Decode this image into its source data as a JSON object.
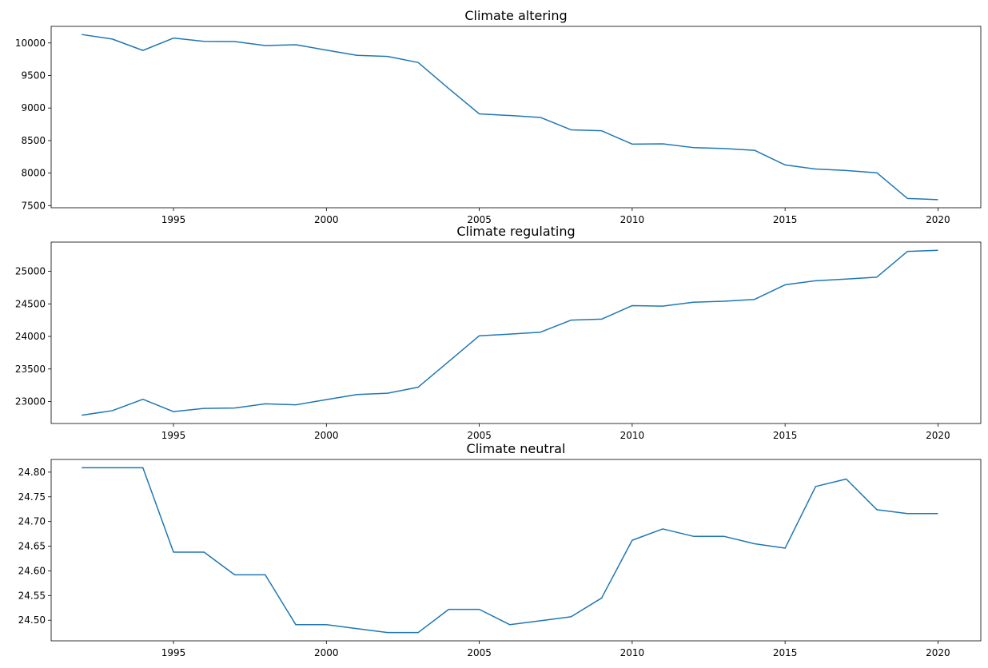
{
  "figure": {
    "background": "#ffffff",
    "line_color": "#1f77b4"
  },
  "chart_data": [
    {
      "type": "line",
      "title": "Climate altering",
      "xlabel": "",
      "ylabel": "",
      "x": [
        1992,
        1993,
        1994,
        1995,
        1996,
        1997,
        1998,
        1999,
        2000,
        2001,
        2002,
        2003,
        2004,
        2005,
        2006,
        2007,
        2008,
        2009,
        2010,
        2011,
        2012,
        2013,
        2014,
        2015,
        2016,
        2017,
        2018,
        2019,
        2020
      ],
      "series": [
        {
          "values": [
            10130,
            10060,
            9885,
            10075,
            10025,
            10022,
            9960,
            9973,
            9890,
            9810,
            9793,
            9700,
            9300,
            8910,
            8885,
            8855,
            8665,
            8650,
            8445,
            8450,
            8392,
            8378,
            8350,
            8125,
            8062,
            8040,
            8005,
            7610,
            7592
          ]
        }
      ],
      "xlim": [
        1991.0,
        2021.4
      ],
      "ylim": [
        7467,
        10255
      ],
      "xticks": [
        1995,
        2000,
        2005,
        2010,
        2015,
        2020
      ],
      "xtick_labels": [
        "1995",
        "2000",
        "2005",
        "2010",
        "2015",
        "2020"
      ],
      "yticks": [
        7500,
        8000,
        8500,
        9000,
        9500,
        10000
      ],
      "ytick_labels": [
        "7500",
        "8000",
        "8500",
        "9000",
        "9500",
        "10000"
      ],
      "grid": false,
      "legend": "none"
    },
    {
      "type": "line",
      "title": "Climate regulating",
      "xlabel": "",
      "ylabel": "",
      "x": [
        1992,
        1993,
        1994,
        1995,
        1996,
        1997,
        1998,
        1999,
        2000,
        2001,
        2002,
        2003,
        2004,
        2005,
        2006,
        2007,
        2008,
        2009,
        2010,
        2011,
        2012,
        2013,
        2014,
        2015,
        2016,
        2017,
        2018,
        2019,
        2020
      ],
      "series": [
        {
          "values": [
            22790,
            22860,
            23035,
            22845,
            22895,
            22900,
            22965,
            22950,
            23030,
            23108,
            23128,
            23220,
            23615,
            24010,
            24035,
            24065,
            24250,
            24265,
            24473,
            24465,
            24525,
            24540,
            24568,
            24793,
            24855,
            24880,
            24910,
            25305,
            25322
          ]
        }
      ],
      "xlim": [
        1991.0,
        2021.4
      ],
      "ylim": [
        22663,
        25448
      ],
      "xticks": [
        1995,
        2000,
        2005,
        2010,
        2015,
        2020
      ],
      "xtick_labels": [
        "1995",
        "2000",
        "2005",
        "2010",
        "2015",
        "2020"
      ],
      "yticks": [
        23000,
        23500,
        24000,
        24500,
        25000
      ],
      "ytick_labels": [
        "23000",
        "23500",
        "24000",
        "24500",
        "25000"
      ],
      "grid": false,
      "legend": "none"
    },
    {
      "type": "line",
      "title": "Climate neutral",
      "xlabel": "",
      "ylabel": "",
      "x": [
        1992,
        1993,
        1994,
        1995,
        1996,
        1997,
        1998,
        1999,
        2000,
        2001,
        2002,
        2003,
        2004,
        2005,
        2006,
        2007,
        2008,
        2009,
        2010,
        2011,
        2012,
        2013,
        2014,
        2015,
        2016,
        2017,
        2018,
        2019,
        2020
      ],
      "series": [
        {
          "values": [
            24.809,
            24.809,
            24.809,
            24.638,
            24.638,
            24.592,
            24.592,
            24.491,
            24.491,
            24.483,
            24.475,
            24.475,
            24.522,
            24.522,
            24.491,
            24.499,
            24.507,
            24.545,
            24.662,
            24.685,
            24.67,
            24.67,
            24.655,
            24.646,
            24.771,
            24.786,
            24.724,
            24.716,
            24.716
          ]
        }
      ],
      "xlim": [
        1991.0,
        2021.4
      ],
      "ylim": [
        24.4583,
        24.8257
      ],
      "xticks": [
        1995,
        2000,
        2005,
        2010,
        2015,
        2020
      ],
      "xtick_labels": [
        "1995",
        "2000",
        "2005",
        "2010",
        "2015",
        "2020"
      ],
      "yticks": [
        24.5,
        24.55,
        24.6,
        24.65,
        24.7,
        24.75,
        24.8
      ],
      "ytick_labels": [
        "24.50",
        "24.55",
        "24.60",
        "24.65",
        "24.70",
        "24.75",
        "24.80"
      ],
      "grid": false,
      "legend": "none"
    }
  ]
}
